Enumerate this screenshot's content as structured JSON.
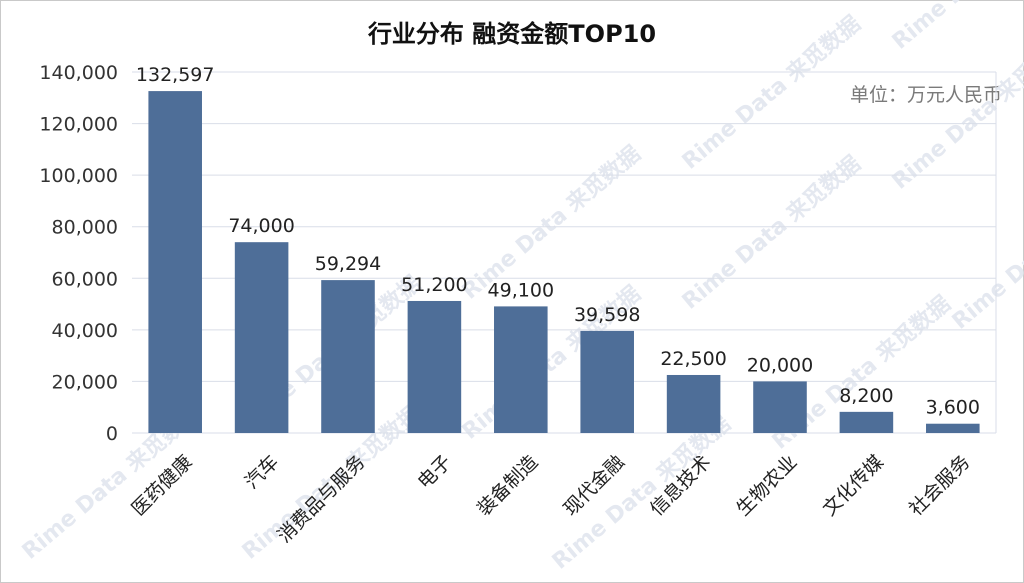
{
  "chart_data": {
    "type": "bar",
    "title": "行业分布 融资金额TOP10",
    "unit_note": "单位：万元人民币",
    "categories": [
      "医药健康",
      "汽车",
      "消费品与服务",
      "电子",
      "装备制造",
      "现代金融",
      "信息技术",
      "生物农业",
      "文化传媒",
      "社会服务"
    ],
    "values": [
      132597,
      74000,
      59294,
      51200,
      49100,
      39598,
      22500,
      20000,
      8200,
      3600
    ],
    "value_labels": [
      "132,597",
      "74,000",
      "59,294",
      "51,200",
      "49,100",
      "39,598",
      "22,500",
      "20,000",
      "8,200",
      "3,600"
    ],
    "yticks": [
      0,
      20000,
      40000,
      60000,
      80000,
      100000,
      120000,
      140000
    ],
    "ytick_labels": [
      "0",
      "20,000",
      "40,000",
      "60,000",
      "80,000",
      "100,000",
      "120,000",
      "140,000"
    ],
    "ylim": [
      0,
      140000
    ],
    "bar_color": "#4e6e98",
    "grid": true
  },
  "watermark": "Rime Data 来觅数据"
}
